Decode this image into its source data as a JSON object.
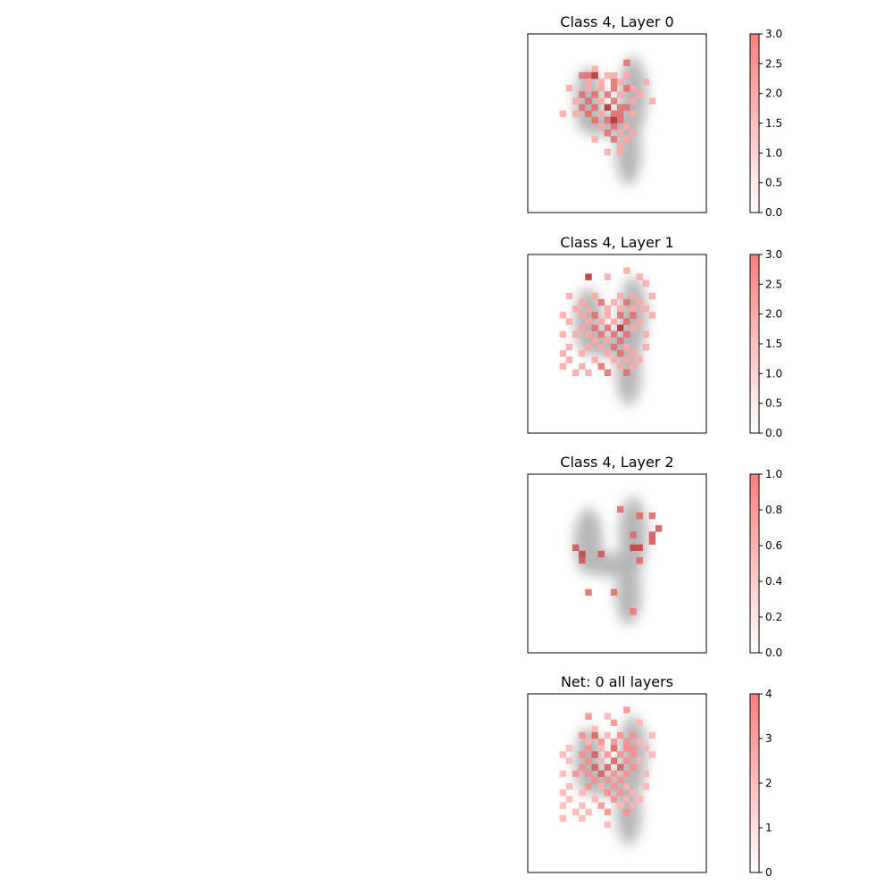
{
  "chart_data": [
    {
      "type": "heatmap",
      "title": "Class 4, Layer 0",
      "grid_size": [
        28,
        28
      ],
      "background": "mean digit image (grayscale)",
      "colorbar": {
        "min": 0,
        "max": 3,
        "ticks": [
          "0.0",
          "0.5",
          "1.0",
          "1.5",
          "2.0",
          "2.5",
          "3.0"
        ]
      },
      "cells": [
        [
          15,
          4,
          2
        ],
        [
          10,
          5,
          1
        ],
        [
          8,
          6,
          2
        ],
        [
          9,
          6,
          2
        ],
        [
          10,
          6,
          3
        ],
        [
          12,
          6,
          1
        ],
        [
          13,
          6,
          1
        ],
        [
          15,
          6,
          1
        ],
        [
          9,
          7,
          1
        ],
        [
          11,
          7,
          1
        ],
        [
          13,
          7,
          2
        ],
        [
          14,
          7,
          1
        ],
        [
          18,
          7,
          1
        ],
        [
          6,
          8,
          1
        ],
        [
          9,
          8,
          1
        ],
        [
          11,
          8,
          1
        ],
        [
          13,
          8,
          2
        ],
        [
          15,
          8,
          2
        ],
        [
          16,
          8,
          1
        ],
        [
          8,
          9,
          2
        ],
        [
          10,
          9,
          2
        ],
        [
          12,
          9,
          2
        ],
        [
          14,
          9,
          1
        ],
        [
          17,
          9,
          1
        ],
        [
          7,
          10,
          1
        ],
        [
          9,
          10,
          2
        ],
        [
          11,
          10,
          1
        ],
        [
          13,
          10,
          2
        ],
        [
          16,
          10,
          1
        ],
        [
          19,
          10,
          1
        ],
        [
          8,
          11,
          2
        ],
        [
          10,
          11,
          2
        ],
        [
          12,
          11,
          3
        ],
        [
          14,
          11,
          2
        ],
        [
          15,
          11,
          2
        ],
        [
          5,
          12,
          1
        ],
        [
          7,
          12,
          1
        ],
        [
          9,
          12,
          2
        ],
        [
          11,
          12,
          1
        ],
        [
          13,
          12,
          2
        ],
        [
          14,
          12,
          2
        ],
        [
          16,
          12,
          1
        ],
        [
          10,
          13,
          2
        ],
        [
          12,
          13,
          2
        ],
        [
          13,
          13,
          3
        ],
        [
          14,
          13,
          2
        ],
        [
          11,
          14,
          1
        ],
        [
          13,
          14,
          2
        ],
        [
          15,
          14,
          1
        ],
        [
          12,
          15,
          2
        ],
        [
          14,
          15,
          1
        ],
        [
          16,
          15,
          1
        ],
        [
          10,
          16,
          1
        ],
        [
          13,
          16,
          2
        ],
        [
          15,
          16,
          1
        ],
        [
          14,
          17,
          1
        ],
        [
          12,
          18,
          1
        ],
        [
          14,
          18,
          1
        ]
      ]
    },
    {
      "type": "heatmap",
      "title": "Class 4, Layer 1",
      "grid_size": [
        28,
        28
      ],
      "background": "mean digit image (grayscale)",
      "colorbar": {
        "min": 0,
        "max": 3,
        "ticks": [
          "0.0",
          "0.5",
          "1.0",
          "1.5",
          "2.0",
          "2.5",
          "3.0"
        ]
      },
      "cells": [
        [
          9,
          3,
          3
        ],
        [
          12,
          3,
          1
        ],
        [
          15,
          2,
          1
        ],
        [
          17,
          3,
          1
        ],
        [
          18,
          4,
          1
        ],
        [
          6,
          6,
          1
        ],
        [
          10,
          6,
          1
        ],
        [
          14,
          6,
          1
        ],
        [
          16,
          6,
          1
        ],
        [
          19,
          6,
          1
        ],
        [
          8,
          7,
          1
        ],
        [
          11,
          7,
          2
        ],
        [
          13,
          7,
          1
        ],
        [
          15,
          7,
          2
        ],
        [
          17,
          7,
          1
        ],
        [
          7,
          8,
          1
        ],
        [
          9,
          8,
          1
        ],
        [
          12,
          8,
          1
        ],
        [
          14,
          8,
          1
        ],
        [
          16,
          8,
          1
        ],
        [
          18,
          8,
          1
        ],
        [
          5,
          9,
          1
        ],
        [
          8,
          9,
          1
        ],
        [
          10,
          9,
          2
        ],
        [
          12,
          9,
          1
        ],
        [
          14,
          9,
          2
        ],
        [
          16,
          9,
          2
        ],
        [
          19,
          9,
          1
        ],
        [
          6,
          10,
          1
        ],
        [
          9,
          10,
          1
        ],
        [
          11,
          10,
          1
        ],
        [
          13,
          10,
          1
        ],
        [
          15,
          10,
          2
        ],
        [
          17,
          10,
          1
        ],
        [
          8,
          11,
          1
        ],
        [
          10,
          11,
          2
        ],
        [
          12,
          11,
          2
        ],
        [
          14,
          11,
          3
        ],
        [
          16,
          11,
          1
        ],
        [
          5,
          12,
          1
        ],
        [
          7,
          12,
          1
        ],
        [
          9,
          12,
          1
        ],
        [
          11,
          12,
          2
        ],
        [
          13,
          12,
          2
        ],
        [
          15,
          12,
          2
        ],
        [
          18,
          12,
          1
        ],
        [
          10,
          13,
          1
        ],
        [
          12,
          13,
          1
        ],
        [
          14,
          13,
          2
        ],
        [
          6,
          14,
          1
        ],
        [
          9,
          14,
          1
        ],
        [
          11,
          14,
          1
        ],
        [
          13,
          14,
          2
        ],
        [
          15,
          14,
          1
        ],
        [
          18,
          14,
          1
        ],
        [
          5,
          15,
          1
        ],
        [
          8,
          15,
          1
        ],
        [
          12,
          15,
          1
        ],
        [
          14,
          15,
          2
        ],
        [
          16,
          15,
          1
        ],
        [
          6,
          16,
          1
        ],
        [
          10,
          16,
          1
        ],
        [
          13,
          16,
          1
        ],
        [
          15,
          16,
          1
        ],
        [
          17,
          16,
          1
        ],
        [
          5,
          17,
          1
        ],
        [
          8,
          17,
          1
        ],
        [
          11,
          17,
          2
        ],
        [
          14,
          17,
          1
        ],
        [
          16,
          17,
          1
        ],
        [
          7,
          18,
          1
        ],
        [
          9,
          18,
          1
        ],
        [
          12,
          18,
          2
        ],
        [
          15,
          18,
          2
        ]
      ]
    },
    {
      "type": "heatmap",
      "title": "Class 4, Layer 2",
      "grid_size": [
        28,
        28
      ],
      "background": "mean digit image (grayscale)",
      "colorbar": {
        "min": 0,
        "max": 1,
        "ticks": [
          "0.0",
          "0.2",
          "0.4",
          "0.6",
          "0.8",
          "1.0"
        ]
      },
      "cells": [
        [
          14,
          5,
          0.7
        ],
        [
          17,
          6,
          0.7
        ],
        [
          19,
          6,
          0.7
        ],
        [
          20,
          8,
          0.8
        ],
        [
          16,
          9,
          0.7
        ],
        [
          19,
          9,
          0.8
        ],
        [
          19,
          10,
          0.8
        ],
        [
          7,
          11,
          0.8
        ],
        [
          16,
          11,
          0.9
        ],
        [
          17,
          11,
          0.9
        ],
        [
          8,
          12,
          0.9
        ],
        [
          11,
          12,
          0.8
        ],
        [
          8,
          13,
          0.8
        ],
        [
          17,
          13,
          0.7
        ],
        [
          9,
          18,
          0.7
        ],
        [
          13,
          18,
          0.7
        ],
        [
          16,
          21,
          0.6
        ]
      ]
    },
    {
      "type": "heatmap",
      "title": "Net: 0 all layers",
      "grid_size": [
        28,
        28
      ],
      "background": "mean digit image (grayscale)",
      "colorbar": {
        "min": 0,
        "max": 4,
        "ticks": [
          "0",
          "1",
          "2",
          "3",
          "4"
        ]
      },
      "cells": [
        [
          9,
          3,
          2
        ],
        [
          12,
          3,
          1
        ],
        [
          15,
          2,
          2
        ],
        [
          17,
          4,
          1
        ],
        [
          13,
          4,
          2
        ],
        [
          10,
          5,
          1
        ],
        [
          8,
          6,
          2
        ],
        [
          10,
          6,
          3
        ],
        [
          12,
          6,
          1
        ],
        [
          14,
          6,
          2
        ],
        [
          16,
          6,
          2
        ],
        [
          19,
          6,
          1
        ],
        [
          9,
          7,
          1
        ],
        [
          11,
          7,
          2
        ],
        [
          13,
          7,
          2
        ],
        [
          15,
          7,
          2
        ],
        [
          17,
          7,
          1
        ],
        [
          6,
          8,
          1
        ],
        [
          9,
          8,
          2
        ],
        [
          11,
          8,
          1
        ],
        [
          13,
          8,
          3
        ],
        [
          15,
          8,
          2
        ],
        [
          16,
          8,
          2
        ],
        [
          18,
          8,
          1
        ],
        [
          5,
          9,
          1
        ],
        [
          8,
          9,
          2
        ],
        [
          10,
          9,
          3
        ],
        [
          12,
          9,
          2
        ],
        [
          14,
          9,
          2
        ],
        [
          16,
          9,
          2
        ],
        [
          19,
          9,
          1
        ],
        [
          6,
          10,
          1
        ],
        [
          9,
          10,
          2
        ],
        [
          11,
          10,
          1
        ],
        [
          13,
          10,
          3
        ],
        [
          15,
          10,
          2
        ],
        [
          17,
          10,
          1
        ],
        [
          8,
          11,
          2
        ],
        [
          10,
          11,
          3
        ],
        [
          12,
          11,
          3
        ],
        [
          14,
          11,
          3
        ],
        [
          16,
          11,
          2
        ],
        [
          5,
          12,
          1
        ],
        [
          7,
          12,
          2
        ],
        [
          9,
          12,
          2
        ],
        [
          11,
          12,
          3
        ],
        [
          13,
          12,
          2
        ],
        [
          15,
          12,
          2
        ],
        [
          18,
          12,
          1
        ],
        [
          10,
          13,
          2
        ],
        [
          12,
          13,
          2
        ],
        [
          14,
          13,
          2
        ],
        [
          6,
          14,
          1
        ],
        [
          9,
          14,
          2
        ],
        [
          11,
          14,
          1
        ],
        [
          13,
          14,
          2
        ],
        [
          15,
          14,
          1
        ],
        [
          18,
          14,
          1
        ],
        [
          5,
          15,
          1
        ],
        [
          8,
          15,
          1
        ],
        [
          12,
          15,
          2
        ],
        [
          14,
          15,
          2
        ],
        [
          16,
          15,
          1
        ],
        [
          6,
          16,
          1
        ],
        [
          10,
          16,
          1
        ],
        [
          13,
          16,
          2
        ],
        [
          15,
          16,
          1
        ],
        [
          17,
          16,
          1
        ],
        [
          5,
          17,
          1
        ],
        [
          8,
          17,
          1
        ],
        [
          11,
          17,
          2
        ],
        [
          14,
          17,
          1
        ],
        [
          16,
          17,
          1
        ],
        [
          7,
          18,
          1
        ],
        [
          9,
          18,
          1
        ],
        [
          12,
          18,
          2
        ],
        [
          15,
          18,
          2
        ],
        [
          5,
          19,
          1
        ],
        [
          8,
          19,
          1
        ],
        [
          12,
          20,
          1
        ]
      ]
    }
  ]
}
